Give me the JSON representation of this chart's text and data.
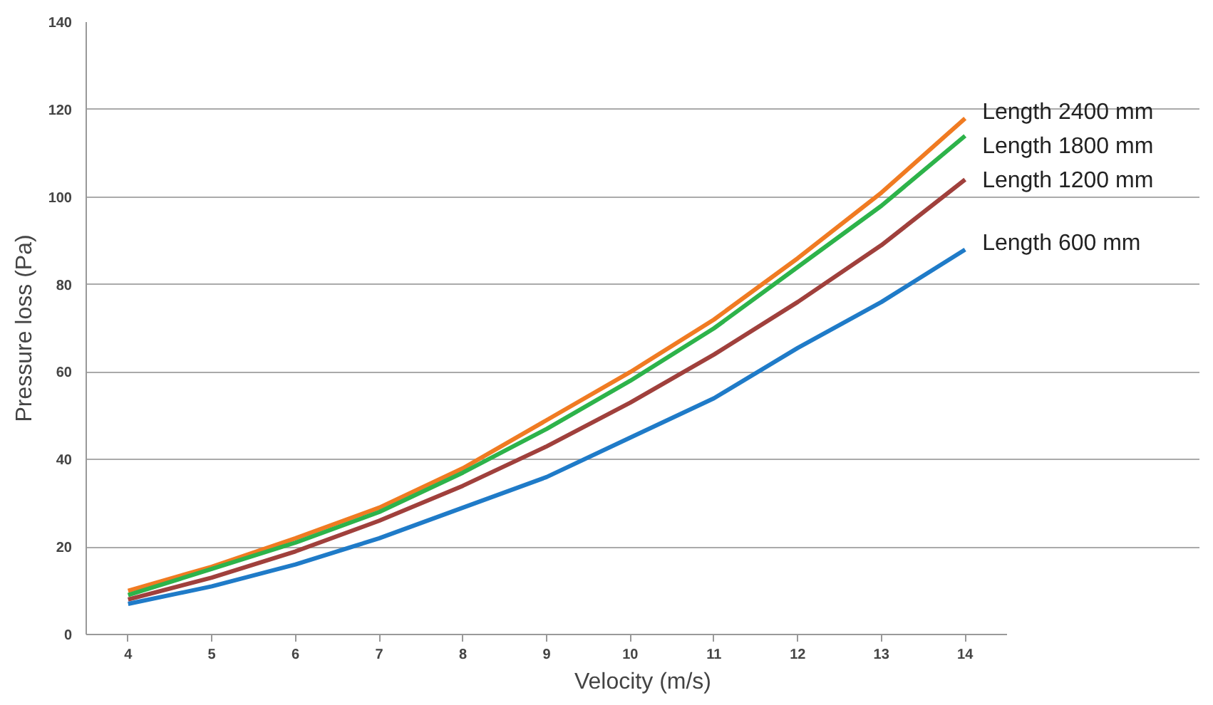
{
  "chart_data": {
    "type": "line",
    "xlabel": "Velocity (m/s)",
    "ylabel": "Pressure loss (Pa)",
    "categories": [
      "4",
      "5",
      "6",
      "7",
      "8",
      "9",
      "10",
      "11",
      "12",
      "13",
      "14"
    ],
    "ylim": [
      0,
      140
    ],
    "yticks": [
      0,
      20,
      40,
      60,
      80,
      100,
      120,
      140
    ],
    "grid": "y",
    "marker": "none",
    "line_style": "solid",
    "series": [
      {
        "name": "Length 2400 mm",
        "color": "#f07b22",
        "values": [
          10,
          15.5,
          22,
          29,
          38,
          49,
          60,
          72,
          86,
          101,
          118
        ]
      },
      {
        "name": "Length 1800 mm",
        "color": "#2db34a",
        "values": [
          9,
          15,
          21,
          28,
          37,
          47,
          58,
          70,
          84,
          98,
          114
        ]
      },
      {
        "name": "Length 1200 mm",
        "color": "#a0403c",
        "values": [
          8,
          13,
          19,
          26,
          34,
          43,
          53,
          64,
          76,
          89,
          104
        ]
      },
      {
        "name": "Length 600 mm",
        "color": "#1f7bc8",
        "values": [
          7,
          11,
          16,
          22,
          29,
          36,
          45,
          54,
          65.5,
          76,
          88
        ]
      }
    ]
  }
}
